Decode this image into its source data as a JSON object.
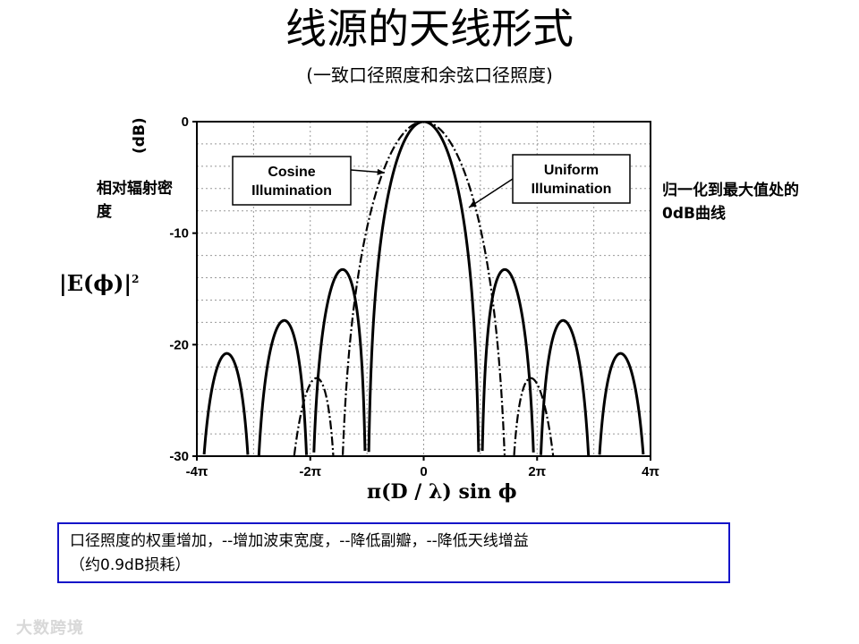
{
  "title": "线源的天线形式",
  "subtitle": "(一致口径照度和余弦口径照度)",
  "ylabel_left": "相对辐射密度",
  "ylabel_db": "(dB)",
  "ylabel_right": "归一化到最大值处的0dB曲线",
  "e_formula": "|E(ϕ)|",
  "e_formula_exp": "2",
  "xlabel": "π(D / λ) sin ϕ",
  "note_line1": "口径照度的权重增加，--增加波束宽度，--降低副瓣，--降低天线增益",
  "note_line2": "（约0.9dB损耗）",
  "watermark": "大数跨境",
  "colors": {
    "note_border": "#1414c8",
    "curve": "#000000",
    "grid": "#999999"
  },
  "chart_data": {
    "type": "line",
    "xlabel": "π(D / λ) sin ϕ",
    "ylabel": "(dB)",
    "xlim": [
      -12.566,
      12.566
    ],
    "ylim": [
      -30,
      0
    ],
    "x_ticks": [
      {
        "value": -12.566,
        "label": "-4π"
      },
      {
        "value": -6.283,
        "label": "-2π"
      },
      {
        "value": 0,
        "label": "0"
      },
      {
        "value": 6.283,
        "label": "2π"
      },
      {
        "value": 12.566,
        "label": "4π"
      }
    ],
    "y_ticks": [
      {
        "value": 0,
        "label": "0"
      },
      {
        "value": -10,
        "label": "-10"
      },
      {
        "value": -20,
        "label": "-20"
      },
      {
        "value": -30,
        "label": "-30"
      }
    ],
    "grid": true,
    "series": [
      {
        "name": "Uniform Illumination",
        "style": "solid",
        "function": "sinc"
      },
      {
        "name": "Cosine Illumination",
        "style": "dash-dot",
        "function": "cosine"
      }
    ],
    "annotations": [
      {
        "text": [
          "Cosine",
          "Illumination"
        ],
        "points_to": "Cosine Illumination"
      },
      {
        "text": [
          "Uniform",
          "Illumination"
        ],
        "points_to": "Uniform Illumination"
      }
    ]
  }
}
